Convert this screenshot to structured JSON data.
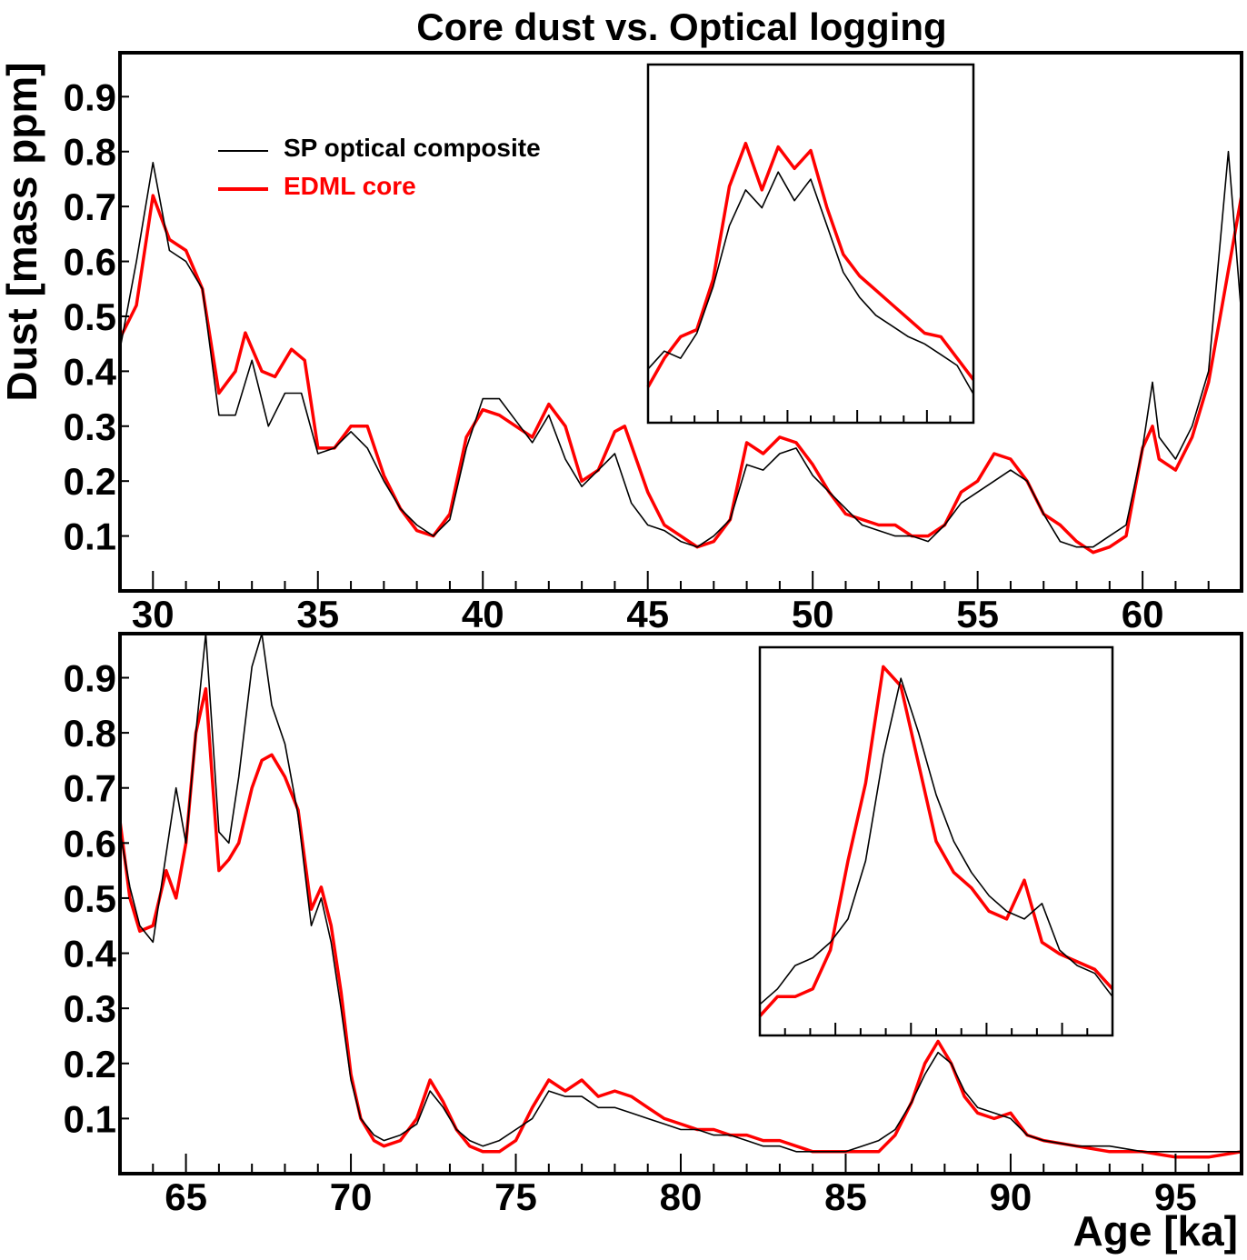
{
  "title": "Core dust vs. Optical logging",
  "ylabel": "Dust [mass ppm]",
  "xlabel": "Age [ka]",
  "colors": {
    "optical": "#000000",
    "core": "#ff0000"
  },
  "legend": {
    "placement": "top-left",
    "items": [
      {
        "label": "SP optical composite",
        "color": "#000000"
      },
      {
        "label": "EDML core",
        "color": "#ff0000"
      }
    ]
  },
  "chart_data": [
    {
      "type": "line",
      "panel": "top",
      "xlim": [
        29,
        63
      ],
      "ylim": [
        0,
        0.98
      ],
      "xticks": [
        30,
        35,
        40,
        45,
        50,
        55,
        60
      ],
      "yticks": [
        0.1,
        0.2,
        0.3,
        0.4,
        0.5,
        0.6,
        0.7,
        0.8,
        0.9
      ],
      "series": [
        {
          "name": "SP optical composite",
          "x": [
            29,
            29.5,
            30,
            30.5,
            31,
            31.5,
            32,
            32.5,
            33,
            33.5,
            34,
            34.5,
            35,
            35.5,
            36,
            36.5,
            37,
            37.5,
            38,
            38.5,
            39,
            39.5,
            40,
            40.5,
            41,
            41.5,
            42,
            42.5,
            43,
            43.5,
            44,
            44.5,
            45,
            45.5,
            46,
            46.5,
            47,
            47.5,
            48,
            48.5,
            49,
            49.5,
            50,
            50.5,
            51,
            51.5,
            52,
            52.5,
            53,
            53.5,
            54,
            54.5,
            55,
            55.5,
            56,
            56.5,
            57,
            57.5,
            58,
            58.5,
            59,
            59.5,
            60,
            60.3,
            60.5,
            61,
            61.5,
            62,
            62.3,
            62.6,
            63
          ],
          "values": [
            0.44,
            0.6,
            0.78,
            0.62,
            0.6,
            0.55,
            0.32,
            0.32,
            0.42,
            0.3,
            0.36,
            0.36,
            0.25,
            0.26,
            0.29,
            0.26,
            0.2,
            0.15,
            0.12,
            0.1,
            0.13,
            0.26,
            0.35,
            0.35,
            0.31,
            0.27,
            0.32,
            0.24,
            0.19,
            0.22,
            0.25,
            0.16,
            0.12,
            0.11,
            0.09,
            0.08,
            0.1,
            0.13,
            0.23,
            0.22,
            0.25,
            0.26,
            0.21,
            0.18,
            0.15,
            0.12,
            0.11,
            0.1,
            0.1,
            0.09,
            0.12,
            0.16,
            0.18,
            0.2,
            0.22,
            0.2,
            0.14,
            0.09,
            0.08,
            0.08,
            0.1,
            0.12,
            0.26,
            0.38,
            0.28,
            0.24,
            0.3,
            0.4,
            0.6,
            0.8,
            0.5
          ]
        },
        {
          "name": "EDML core",
          "x": [
            29,
            29.5,
            30,
            30.5,
            31,
            31.5,
            32,
            32.5,
            32.8,
            33.3,
            33.7,
            34.2,
            34.6,
            35,
            35.5,
            36,
            36.5,
            37,
            37.5,
            38,
            38.5,
            39,
            39.5,
            40,
            40.5,
            41,
            41.5,
            42,
            42.5,
            43,
            43.5,
            44,
            44.3,
            45,
            45.5,
            46,
            46.5,
            47,
            47.5,
            48,
            48.5,
            49,
            49.5,
            50,
            50.5,
            51,
            51.5,
            52,
            52.5,
            53,
            53.5,
            54,
            54.5,
            55,
            55.5,
            56,
            56.5,
            57,
            57.5,
            58,
            58.5,
            59,
            59.5,
            60,
            60.3,
            60.5,
            61,
            61.5,
            62,
            62.5,
            63
          ],
          "values": [
            0.46,
            0.52,
            0.72,
            0.64,
            0.62,
            0.55,
            0.36,
            0.4,
            0.47,
            0.4,
            0.39,
            0.44,
            0.42,
            0.26,
            0.26,
            0.3,
            0.3,
            0.21,
            0.15,
            0.11,
            0.1,
            0.14,
            0.28,
            0.33,
            0.32,
            0.3,
            0.28,
            0.34,
            0.3,
            0.2,
            0.22,
            0.29,
            0.3,
            0.18,
            0.12,
            0.1,
            0.08,
            0.09,
            0.13,
            0.27,
            0.25,
            0.28,
            0.27,
            0.23,
            0.18,
            0.14,
            0.13,
            0.12,
            0.12,
            0.1,
            0.1,
            0.12,
            0.18,
            0.2,
            0.25,
            0.24,
            0.2,
            0.14,
            0.12,
            0.09,
            0.07,
            0.08,
            0.1,
            0.26,
            0.3,
            0.24,
            0.22,
            0.28,
            0.38,
            0.55,
            0.72
          ]
        }
      ]
    },
    {
      "type": "line",
      "panel": "bottom",
      "xlim": [
        63,
        97
      ],
      "ylim": [
        0,
        0.98
      ],
      "xticks": [
        65,
        70,
        75,
        80,
        85,
        90,
        95
      ],
      "yticks": [
        0.1,
        0.2,
        0.3,
        0.4,
        0.5,
        0.6,
        0.7,
        0.8,
        0.9
      ],
      "series": [
        {
          "name": "SP optical composite",
          "x": [
            63,
            63.3,
            63.6,
            64,
            64.4,
            64.7,
            65,
            65.3,
            65.6,
            66,
            66.3,
            66.6,
            67,
            67.3,
            67.6,
            68,
            68.4,
            68.8,
            69.1,
            69.4,
            69.7,
            70,
            70.3,
            70.7,
            71,
            71.5,
            72,
            72.4,
            72.8,
            73.2,
            73.6,
            74,
            74.5,
            75,
            75.5,
            76,
            76.5,
            77,
            77.5,
            78,
            78.5,
            79,
            79.5,
            80,
            80.5,
            81,
            81.5,
            82,
            82.5,
            83,
            83.5,
            84,
            84.5,
            85,
            85.5,
            86,
            86.5,
            87,
            87.4,
            87.8,
            88.2,
            88.6,
            89,
            89.5,
            90,
            90.5,
            91,
            92,
            93,
            94,
            95,
            96,
            97
          ],
          "values": [
            0.62,
            0.52,
            0.45,
            0.42,
            0.58,
            0.7,
            0.6,
            0.8,
            0.98,
            0.62,
            0.6,
            0.72,
            0.92,
            0.98,
            0.85,
            0.78,
            0.65,
            0.45,
            0.5,
            0.42,
            0.3,
            0.17,
            0.1,
            0.07,
            0.06,
            0.07,
            0.09,
            0.15,
            0.12,
            0.08,
            0.06,
            0.05,
            0.06,
            0.08,
            0.1,
            0.15,
            0.14,
            0.14,
            0.12,
            0.12,
            0.11,
            0.1,
            0.09,
            0.08,
            0.08,
            0.07,
            0.07,
            0.06,
            0.05,
            0.05,
            0.04,
            0.04,
            0.04,
            0.04,
            0.05,
            0.06,
            0.08,
            0.13,
            0.18,
            0.22,
            0.2,
            0.15,
            0.12,
            0.11,
            0.1,
            0.07,
            0.06,
            0.05,
            0.05,
            0.04,
            0.04,
            0.04,
            0.04
          ]
        },
        {
          "name": "EDML core",
          "x": [
            63,
            63.3,
            63.6,
            64,
            64.4,
            64.7,
            65,
            65.3,
            65.6,
            66,
            66.3,
            66.6,
            67,
            67.3,
            67.6,
            68,
            68.4,
            68.8,
            69.1,
            69.4,
            69.7,
            70,
            70.3,
            70.7,
            71,
            71.5,
            72,
            72.4,
            72.8,
            73.2,
            73.6,
            74,
            74.5,
            75,
            75.5,
            76,
            76.5,
            77,
            77.5,
            78,
            78.5,
            79,
            79.5,
            80,
            80.5,
            81,
            81.5,
            82,
            82.5,
            83,
            83.5,
            84,
            84.5,
            85,
            85.5,
            86,
            86.5,
            87,
            87.4,
            87.8,
            88.2,
            88.6,
            89,
            89.5,
            90,
            90.5,
            91,
            92,
            93,
            94,
            95,
            96,
            97
          ],
          "values": [
            0.64,
            0.5,
            0.44,
            0.45,
            0.55,
            0.5,
            0.6,
            0.8,
            0.88,
            0.55,
            0.57,
            0.6,
            0.7,
            0.75,
            0.76,
            0.72,
            0.66,
            0.48,
            0.52,
            0.45,
            0.33,
            0.18,
            0.1,
            0.06,
            0.05,
            0.06,
            0.1,
            0.17,
            0.13,
            0.08,
            0.05,
            0.04,
            0.04,
            0.06,
            0.12,
            0.17,
            0.15,
            0.17,
            0.14,
            0.15,
            0.14,
            0.12,
            0.1,
            0.09,
            0.08,
            0.08,
            0.07,
            0.07,
            0.06,
            0.06,
            0.05,
            0.04,
            0.04,
            0.04,
            0.04,
            0.04,
            0.07,
            0.13,
            0.2,
            0.24,
            0.2,
            0.14,
            0.11,
            0.1,
            0.11,
            0.07,
            0.06,
            0.05,
            0.04,
            0.04,
            0.03,
            0.03,
            0.04
          ]
        }
      ]
    },
    {
      "type": "line",
      "panel": "top-inset",
      "xlim": [
        0,
        1
      ],
      "ylim": [
        0,
        1
      ],
      "series": [
        {
          "name": "SP optical composite",
          "x": [
            0,
            0.05,
            0.1,
            0.15,
            0.2,
            0.25,
            0.3,
            0.35,
            0.4,
            0.45,
            0.5,
            0.55,
            0.6,
            0.65,
            0.7,
            0.75,
            0.8,
            0.85,
            0.9,
            0.95,
            1
          ],
          "values": [
            0.15,
            0.2,
            0.18,
            0.25,
            0.38,
            0.55,
            0.65,
            0.6,
            0.7,
            0.62,
            0.68,
            0.55,
            0.42,
            0.35,
            0.3,
            0.27,
            0.24,
            0.22,
            0.19,
            0.16,
            0.08
          ]
        },
        {
          "name": "EDML core",
          "x": [
            0,
            0.05,
            0.1,
            0.15,
            0.2,
            0.25,
            0.3,
            0.35,
            0.4,
            0.45,
            0.5,
            0.55,
            0.6,
            0.65,
            0.7,
            0.75,
            0.8,
            0.85,
            0.9,
            0.95,
            1
          ],
          "values": [
            0.1,
            0.18,
            0.24,
            0.26,
            0.4,
            0.66,
            0.78,
            0.65,
            0.77,
            0.71,
            0.76,
            0.6,
            0.47,
            0.41,
            0.37,
            0.33,
            0.29,
            0.25,
            0.24,
            0.18,
            0.12
          ]
        }
      ]
    },
    {
      "type": "line",
      "panel": "bottom-inset",
      "xlim": [
        0,
        1
      ],
      "ylim": [
        0,
        1
      ],
      "series": [
        {
          "name": "SP optical composite",
          "x": [
            0,
            0.05,
            0.1,
            0.15,
            0.2,
            0.25,
            0.3,
            0.35,
            0.4,
            0.45,
            0.5,
            0.55,
            0.6,
            0.65,
            0.7,
            0.75,
            0.8,
            0.85,
            0.9,
            0.95,
            1
          ],
          "values": [
            0.08,
            0.12,
            0.18,
            0.2,
            0.24,
            0.3,
            0.45,
            0.72,
            0.92,
            0.78,
            0.62,
            0.5,
            0.42,
            0.36,
            0.32,
            0.3,
            0.34,
            0.22,
            0.18,
            0.16,
            0.1
          ]
        },
        {
          "name": "EDML core",
          "x": [
            0,
            0.05,
            0.1,
            0.15,
            0.2,
            0.25,
            0.3,
            0.35,
            0.4,
            0.45,
            0.5,
            0.55,
            0.6,
            0.65,
            0.7,
            0.75,
            0.8,
            0.85,
            0.9,
            0.95,
            1
          ],
          "values": [
            0.05,
            0.1,
            0.1,
            0.12,
            0.22,
            0.45,
            0.65,
            0.95,
            0.9,
            0.7,
            0.5,
            0.42,
            0.38,
            0.32,
            0.3,
            0.4,
            0.24,
            0.21,
            0.19,
            0.17,
            0.12
          ]
        }
      ]
    }
  ]
}
